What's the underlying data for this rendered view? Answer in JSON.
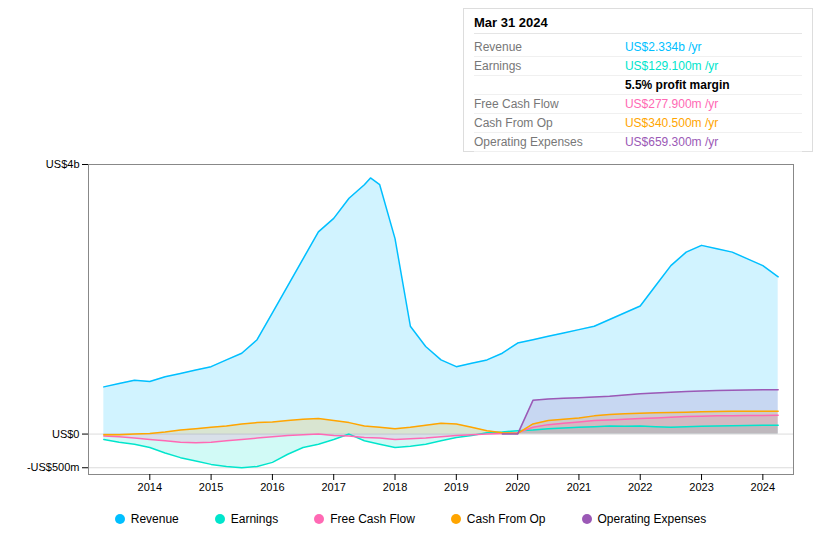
{
  "chart_data": {
    "type": "area",
    "title": "Mar 31 2024",
    "xlim": [
      2013.0,
      2024.5
    ],
    "xticks": [
      2014,
      2015,
      2016,
      2017,
      2018,
      2019,
      2020,
      2021,
      2022,
      2023,
      2024
    ],
    "ylim": [
      -600,
      4000
    ],
    "yticks": [
      {
        "value": -500,
        "label": "-US$500m"
      },
      {
        "value": 0,
        "label": "US$0"
      },
      {
        "value": 4000,
        "label": "US$4b"
      }
    ],
    "grid": true,
    "legend": "bottom",
    "series": [
      {
        "name": "Revenue",
        "color": "#00bfff",
        "x": [
          2013.25,
          2013.5,
          2013.75,
          2014.0,
          2014.25,
          2014.5,
          2014.75,
          2015.0,
          2015.25,
          2015.5,
          2015.75,
          2016.0,
          2016.25,
          2016.5,
          2016.75,
          2017.0,
          2017.25,
          2017.5,
          2017.6,
          2017.75,
          2018.0,
          2018.25,
          2018.5,
          2018.75,
          2019.0,
          2019.25,
          2019.5,
          2019.75,
          2020.0,
          2020.25,
          2020.5,
          2020.75,
          2021.0,
          2021.25,
          2021.5,
          2021.75,
          2022.0,
          2022.25,
          2022.5,
          2022.75,
          2023.0,
          2023.25,
          2023.5,
          2023.75,
          2024.0,
          2024.25
        ],
        "values": [
          700,
          750,
          800,
          780,
          850,
          900,
          950,
          1000,
          1100,
          1200,
          1400,
          1800,
          2200,
          2600,
          3000,
          3200,
          3500,
          3700,
          3800,
          3700,
          2900,
          1600,
          1300,
          1100,
          1000,
          1050,
          1100,
          1200,
          1350,
          1400,
          1450,
          1500,
          1550,
          1600,
          1700,
          1800,
          1900,
          2200,
          2500,
          2700,
          2800,
          2750,
          2700,
          2600,
          2500,
          2334
        ]
      },
      {
        "name": "Earnings",
        "color": "#00e5cc",
        "x": [
          2013.25,
          2013.5,
          2013.75,
          2014.0,
          2014.25,
          2014.5,
          2014.75,
          2015.0,
          2015.25,
          2015.5,
          2015.75,
          2016.0,
          2016.25,
          2016.5,
          2016.75,
          2017.0,
          2017.25,
          2017.5,
          2017.75,
          2018.0,
          2018.25,
          2018.5,
          2018.75,
          2019.0,
          2019.25,
          2019.5,
          2019.75,
          2020.0,
          2020.25,
          2020.5,
          2020.75,
          2021.0,
          2021.25,
          2021.5,
          2021.75,
          2022.0,
          2022.25,
          2022.5,
          2022.75,
          2023.0,
          2023.25,
          2023.5,
          2023.75,
          2024.0,
          2024.25
        ],
        "values": [
          -80,
          -120,
          -150,
          -200,
          -280,
          -350,
          -400,
          -450,
          -480,
          -500,
          -480,
          -420,
          -300,
          -200,
          -150,
          -80,
          0,
          -100,
          -150,
          -200,
          -180,
          -150,
          -100,
          -50,
          -20,
          20,
          30,
          50,
          60,
          80,
          90,
          100,
          110,
          120,
          115,
          120,
          110,
          100,
          110,
          115,
          120,
          125,
          128,
          129,
          129
        ]
      },
      {
        "name": "Free Cash Flow",
        "color": "#ff69b4",
        "x": [
          2013.25,
          2013.5,
          2013.75,
          2014.0,
          2014.25,
          2014.5,
          2014.75,
          2015.0,
          2015.25,
          2015.5,
          2015.75,
          2016.0,
          2016.25,
          2016.5,
          2016.75,
          2017.0,
          2017.25,
          2017.5,
          2017.75,
          2018.0,
          2018.25,
          2018.5,
          2018.75,
          2019.0,
          2019.25,
          2019.5,
          2019.75,
          2020.0,
          2020.25,
          2020.5,
          2020.75,
          2021.0,
          2021.25,
          2021.5,
          2021.75,
          2022.0,
          2022.25,
          2022.5,
          2022.75,
          2023.0,
          2023.25,
          2023.5,
          2023.75,
          2024.0,
          2024.25
        ],
        "values": [
          -30,
          -40,
          -60,
          -80,
          -100,
          -120,
          -130,
          -120,
          -100,
          -80,
          -60,
          -40,
          -20,
          -10,
          0,
          -20,
          -30,
          -50,
          -60,
          -80,
          -70,
          -60,
          -40,
          -20,
          -10,
          0,
          10,
          20,
          100,
          140,
          160,
          180,
          200,
          210,
          220,
          230,
          240,
          250,
          260,
          265,
          270,
          272,
          275,
          277,
          278
        ]
      },
      {
        "name": "Cash From Op",
        "color": "#ffa500",
        "x": [
          2013.25,
          2013.5,
          2013.75,
          2014.0,
          2014.25,
          2014.5,
          2014.75,
          2015.0,
          2015.25,
          2015.5,
          2015.75,
          2016.0,
          2016.25,
          2016.5,
          2016.75,
          2017.0,
          2017.25,
          2017.5,
          2017.75,
          2018.0,
          2018.25,
          2018.5,
          2018.75,
          2019.0,
          2019.25,
          2019.5,
          2019.75,
          2020.0,
          2020.25,
          2020.5,
          2020.75,
          2021.0,
          2021.25,
          2021.5,
          2021.75,
          2022.0,
          2022.25,
          2022.5,
          2022.75,
          2023.0,
          2023.25,
          2023.5,
          2023.75,
          2024.0,
          2024.25
        ],
        "values": [
          -10,
          -10,
          0,
          10,
          30,
          60,
          80,
          100,
          120,
          150,
          170,
          180,
          200,
          220,
          230,
          200,
          170,
          120,
          100,
          80,
          100,
          130,
          160,
          150,
          100,
          50,
          20,
          10,
          150,
          200,
          220,
          240,
          270,
          290,
          300,
          310,
          315,
          320,
          325,
          330,
          335,
          338,
          340,
          340,
          340
        ]
      },
      {
        "name": "Operating Expenses",
        "color": "#9b59b6",
        "x": [
          2019.75,
          2020.0,
          2020.25,
          2020.5,
          2020.75,
          2021.0,
          2021.25,
          2021.5,
          2021.75,
          2022.0,
          2022.25,
          2022.5,
          2022.75,
          2023.0,
          2023.25,
          2023.5,
          2023.75,
          2024.0,
          2024.25
        ],
        "values": [
          0,
          0,
          500,
          520,
          530,
          540,
          550,
          560,
          580,
          600,
          610,
          620,
          630,
          640,
          645,
          650,
          655,
          659,
          659
        ]
      }
    ],
    "annotations": [
      {
        "label": "Revenue",
        "text": "US$2.334b /yr",
        "color": "#00bfff"
      },
      {
        "label": "Earnings",
        "text": "US$129.100m /yr",
        "color": "#00e5cc"
      },
      {
        "text": "5.5% profit margin"
      },
      {
        "label": "Free Cash Flow",
        "text": "US$277.900m /yr",
        "color": "#ff69b4"
      },
      {
        "label": "Cash From Op",
        "text": "US$340.500m /yr",
        "color": "#ffa500"
      },
      {
        "label": "Operating Expenses",
        "text": "US$659.300m /yr",
        "color": "#9b59b6"
      }
    ]
  }
}
